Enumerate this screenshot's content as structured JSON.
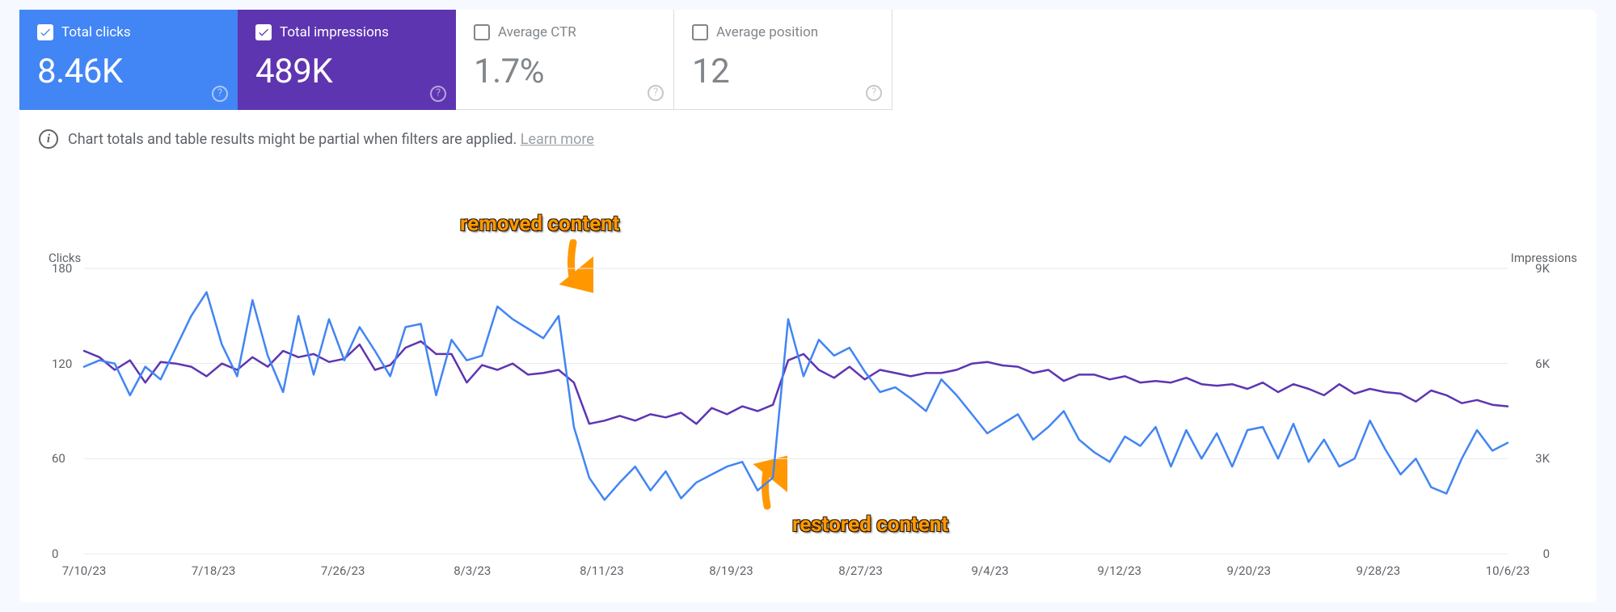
{
  "metrics": {
    "clicks": {
      "label": "Total clicks",
      "value": "8.46K",
      "checked": true,
      "bg": "#4285f4"
    },
    "impressions": {
      "label": "Total impressions",
      "value": "489K",
      "checked": true,
      "bg": "#5e35b1"
    },
    "ctr": {
      "label": "Average CTR",
      "value": "1.7%",
      "checked": false
    },
    "position": {
      "label": "Average position",
      "value": "12",
      "checked": false
    }
  },
  "info": {
    "text": "Chart totals and table results might be partial when filters are applied.",
    "learn_more": "Learn more"
  },
  "annotations": {
    "removed": "removed content",
    "restored": "restored content"
  },
  "chart": {
    "type": "line",
    "left_axis": {
      "title": "Clicks",
      "min": 0,
      "max": 180,
      "ticks": [
        0,
        60,
        120,
        180
      ]
    },
    "right_axis": {
      "title": "Impressions",
      "min": 0,
      "max": 9000,
      "ticks": [
        0,
        3000,
        6000,
        9000
      ],
      "tick_labels": [
        "0",
        "3K",
        "6K",
        "9K"
      ]
    },
    "x_ticks": [
      "7/10/23",
      "7/18/23",
      "7/26/23",
      "8/3/23",
      "8/11/23",
      "8/19/23",
      "8/27/23",
      "9/4/23",
      "9/12/23",
      "9/20/23",
      "9/28/23",
      "10/6/23"
    ],
    "grid_color": "#e8eaed",
    "background_color": "#ffffff",
    "series": {
      "clicks": {
        "color": "#4285f4",
        "stroke_width": 2.5,
        "axis": "left",
        "values": [
          118,
          122,
          120,
          100,
          118,
          110,
          130,
          150,
          165,
          132,
          112,
          160,
          125,
          102,
          150,
          113,
          148,
          122,
          143,
          128,
          112,
          143,
          145,
          100,
          135,
          122,
          125,
          156,
          148,
          142,
          136,
          150,
          80,
          48,
          34,
          45,
          55,
          40,
          52,
          35,
          45,
          50,
          55,
          58,
          40,
          48,
          148,
          112,
          135,
          125,
          130,
          115,
          102,
          105,
          98,
          90,
          110,
          100,
          88,
          76,
          82,
          88,
          72,
          80,
          90,
          72,
          64,
          58,
          74,
          68,
          80,
          55,
          78,
          60,
          76,
          55,
          78,
          80,
          60,
          82,
          58,
          72,
          55,
          60,
          84,
          66,
          50,
          60,
          42,
          38,
          60,
          78,
          65,
          70
        ]
      },
      "impressions": {
        "color": "#5e35b1",
        "stroke_width": 2.5,
        "axis": "right",
        "values": [
          6400,
          6200,
          5800,
          6100,
          5400,
          6050,
          6000,
          5900,
          5600,
          6000,
          5800,
          6200,
          5900,
          6400,
          6200,
          6300,
          6050,
          6150,
          6600,
          5800,
          5950,
          6500,
          6700,
          6300,
          6300,
          5400,
          5950,
          5800,
          6000,
          5650,
          5700,
          5800,
          5400,
          4100,
          4200,
          4350,
          4200,
          4400,
          4300,
          4450,
          4100,
          4600,
          4400,
          4650,
          4500,
          4700,
          6100,
          6300,
          5800,
          5550,
          5900,
          5500,
          5800,
          5700,
          5600,
          5700,
          5700,
          5800,
          6000,
          6050,
          5940,
          5900,
          5700,
          5800,
          5450,
          5650,
          5650,
          5500,
          5600,
          5400,
          5450,
          5400,
          5550,
          5350,
          5300,
          5350,
          5200,
          5400,
          5100,
          5350,
          5200,
          5000,
          5350,
          5050,
          5200,
          5100,
          5050,
          4800,
          5150,
          5000,
          4750,
          4850,
          4700,
          4650
        ]
      }
    },
    "annotation_markers": {
      "removed": {
        "x_index": 31,
        "arrow_color": "#ff9800"
      },
      "restored": {
        "x_index": 46,
        "arrow_color": "#ff9800"
      }
    }
  }
}
